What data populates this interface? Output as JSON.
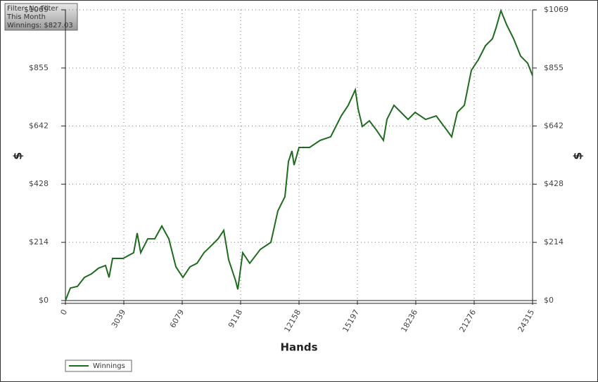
{
  "chart_data": {
    "type": "line",
    "annotations": [
      "Filter: No Filter",
      "This Month",
      "Winnings: $827.03"
    ],
    "x_label": "Hands",
    "y_label": "$",
    "xlim": [
      0,
      24315
    ],
    "xticks": [
      0,
      3039,
      6079,
      9118,
      12158,
      15197,
      18236,
      21276,
      24315
    ],
    "ylim": [
      0,
      1069
    ],
    "yticks": [
      {
        "value": 0,
        "label": "$0"
      },
      {
        "value": 214,
        "label": "$214"
      },
      {
        "value": 428,
        "label": "$428"
      },
      {
        "value": 642,
        "label": "$642"
      },
      {
        "value": 855,
        "label": "$855"
      },
      {
        "value": 1069,
        "label": "$1069"
      }
    ],
    "grid": true,
    "series": [
      {
        "name": "Winnings",
        "color": "#1e6b1e",
        "x": [
          0,
          256,
          623,
          989,
          1355,
          1721,
          2087,
          2270,
          2454,
          3003,
          3552,
          3735,
          3918,
          4285,
          4651,
          5017,
          5383,
          5749,
          6115,
          6482,
          6848,
          7214,
          7580,
          7947,
          8240,
          8496,
          8862,
          8972,
          9228,
          9594,
          10143,
          10693,
          11059,
          11425,
          11608,
          11791,
          11901,
          12158,
          12707,
          13256,
          13805,
          14355,
          14721,
          15087,
          15234,
          15454,
          15820,
          16186,
          16552,
          16735,
          17101,
          17468,
          17834,
          18200,
          18749,
          19299,
          19848,
          20104,
          20397,
          20763,
          21129,
          21495,
          21862,
          22228,
          22411,
          22667,
          22960,
          23326,
          23692,
          24058,
          24315
        ],
        "values": [
          0,
          46,
          52,
          85,
          98,
          119,
          129,
          85,
          155,
          155,
          176,
          248,
          176,
          227,
          227,
          274,
          227,
          124,
          85,
          124,
          137,
          176,
          201,
          227,
          258,
          150,
          72,
          41,
          176,
          137,
          188,
          214,
          330,
          382,
          511,
          550,
          498,
          563,
          563,
          589,
          602,
          679,
          718,
          775,
          705,
          640,
          661,
          627,
          589,
          666,
          718,
          692,
          666,
          692,
          666,
          679,
          627,
          602,
          692,
          718,
          847,
          886,
          937,
          963,
          1002,
          1066,
          1015,
          963,
          899,
          873,
          827.03
        ]
      }
    ]
  }
}
